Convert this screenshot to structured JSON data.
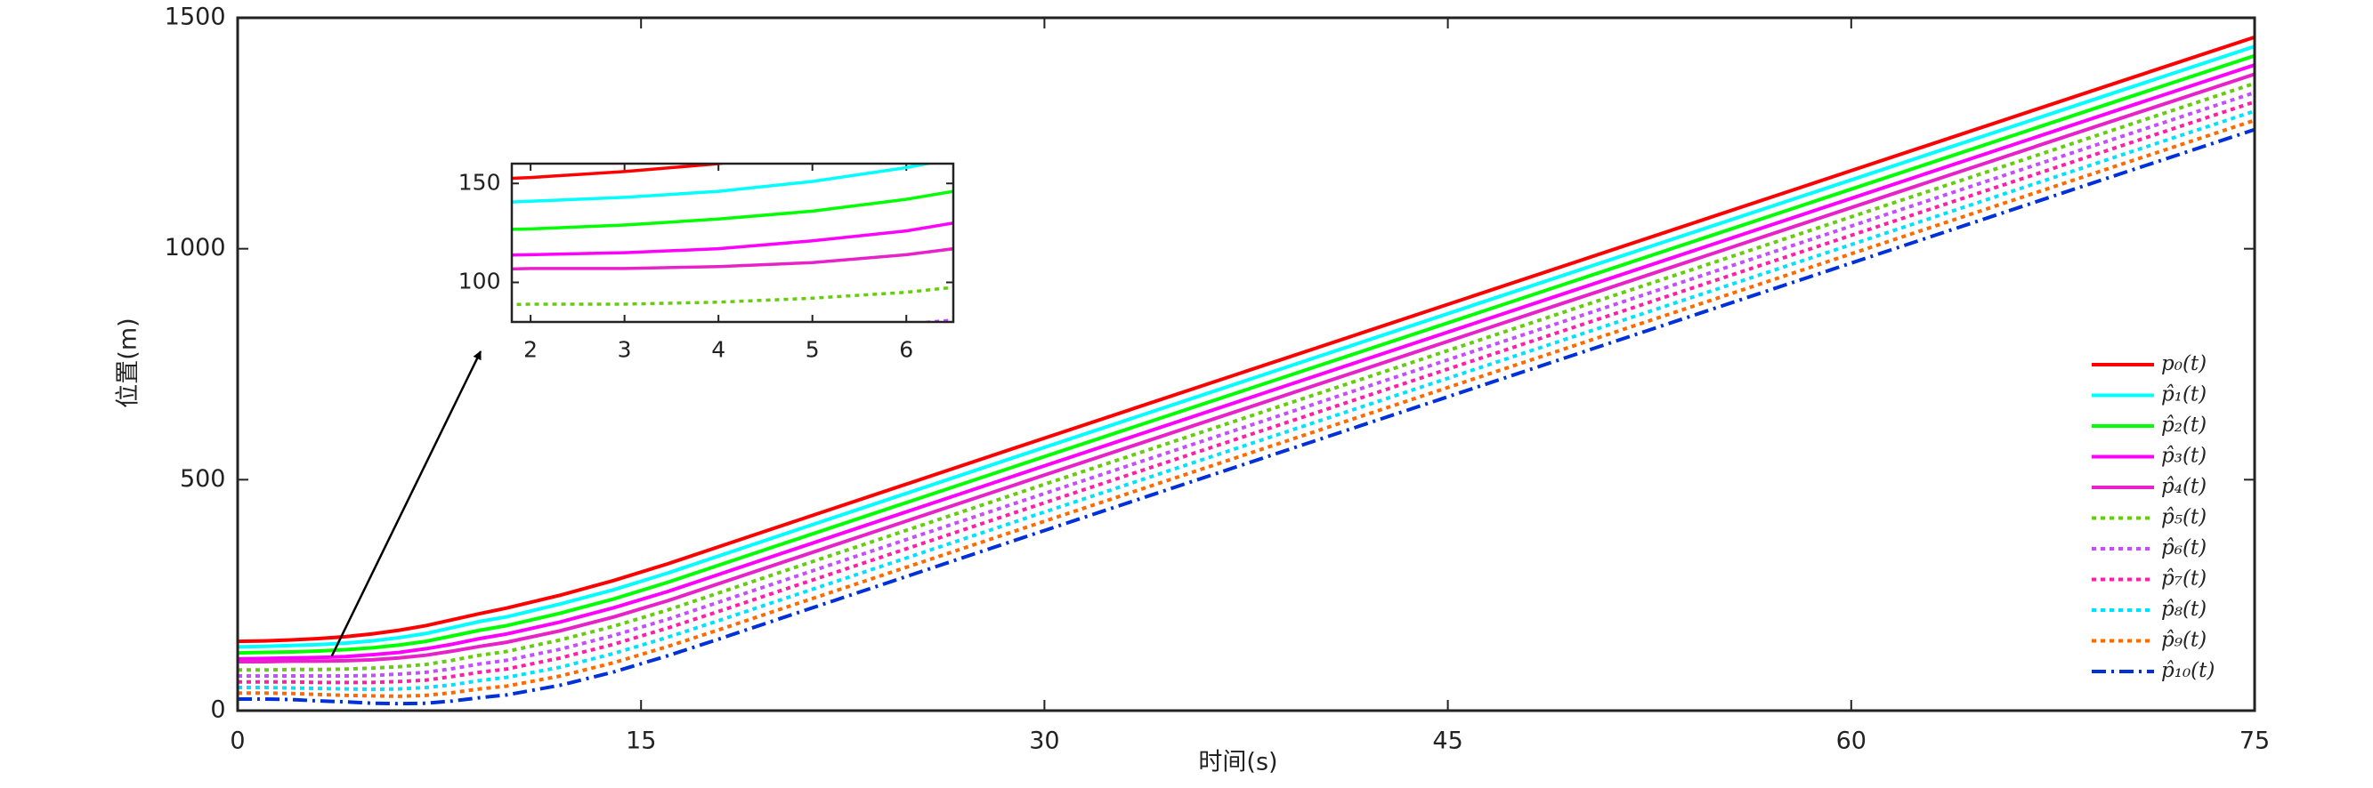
{
  "chart_data": {
    "type": "line",
    "xlabel": "时间(s)",
    "ylabel": "位置(m)",
    "x": [
      0,
      1,
      2,
      3,
      4,
      5,
      6,
      7,
      8,
      9,
      10,
      12,
      14,
      16,
      18,
      20,
      25,
      30,
      40,
      50,
      60,
      70,
      75
    ],
    "xlim": [
      0,
      75
    ],
    "xticks": [
      0,
      15,
      30,
      45,
      60,
      75
    ],
    "ylim": [
      0,
      1500
    ],
    "yticks": [
      0,
      500,
      1000,
      1500
    ],
    "legend": "right",
    "series": [
      {
        "name": "p₀(t)",
        "color": "#ff0000",
        "style": "solid",
        "values": [
          150,
          151,
          153,
          156,
          160,
          166,
          174,
          184,
          197,
          210,
          222,
          250,
          282,
          318,
          357,
          396,
          493,
          590,
          783,
          976,
          1169,
          1362,
          1458
        ]
      },
      {
        "name": "p̂₁(t)",
        "color": "#00ffff",
        "style": "solid",
        "values": [
          138,
          139,
          141,
          143,
          146,
          151,
          158,
          167,
          180,
          193,
          203,
          231,
          262,
          298,
          337,
          376,
          473,
          570,
          763,
          956,
          1149,
          1342,
          1438
        ]
      },
      {
        "name": "p̂₂(t)",
        "color": "#00ff00",
        "style": "solid",
        "values": [
          125,
          126,
          127,
          129,
          132,
          136,
          142,
          150,
          162,
          174,
          184,
          211,
          242,
          278,
          317,
          356,
          453,
          550,
          743,
          936,
          1129,
          1322,
          1418
        ]
      },
      {
        "name": "p̂₃(t)",
        "color": "#ff00ff",
        "style": "solid",
        "values": [
          112,
          113,
          114,
          115,
          117,
          121,
          126,
          134,
          144,
          156,
          166,
          192,
          223,
          258,
          297,
          336,
          433,
          530,
          723,
          916,
          1109,
          1302,
          1398
        ]
      },
      {
        "name": "p̂₄(t)",
        "color": "#e622c8",
        "style": "solid",
        "values": [
          106,
          106,
          107,
          107,
          108,
          110,
          114,
          120,
          129,
          139,
          148,
          173,
          203,
          238,
          277,
          316,
          413,
          510,
          703,
          896,
          1089,
          1282,
          1378
        ]
      },
      {
        "name": "p̂₅(t)",
        "color": "#66cc11",
        "style": "dotted",
        "values": [
          88,
          88,
          89,
          89,
          90,
          92,
          95,
          100,
          109,
          120,
          128,
          153,
          183,
          218,
          257,
          296,
          393,
          490,
          683,
          876,
          1069,
          1262,
          1358
        ]
      },
      {
        "name": "p̂₆(t)",
        "color": "#c44dff",
        "style": "dotted",
        "values": [
          75,
          75,
          75,
          75,
          75,
          76,
          79,
          83,
          91,
          101,
          109,
          133,
          163,
          198,
          237,
          276,
          373,
          470,
          663,
          856,
          1049,
          1242,
          1338
        ]
      },
      {
        "name": "p̂₇(t)",
        "color": "#ff1fa5",
        "style": "dotted",
        "values": [
          62,
          62,
          62,
          61,
          61,
          61,
          63,
          66,
          74,
          83,
          90,
          114,
          144,
          179,
          217,
          256,
          353,
          450,
          643,
          836,
          1029,
          1222,
          1318
        ]
      },
      {
        "name": "p̂₈(t)",
        "color": "#00e0ff",
        "style": "dotted",
        "values": [
          50,
          50,
          49,
          48,
          47,
          46,
          47,
          50,
          56,
          65,
          72,
          94,
          124,
          159,
          197,
          236,
          333,
          430,
          623,
          816,
          1009,
          1202,
          1298
        ]
      },
      {
        "name": "p̂₉(t)",
        "color": "#ff6a00",
        "style": "dotted",
        "values": [
          38,
          38,
          37,
          35,
          33,
          32,
          31,
          33,
          39,
          47,
          53,
          75,
          104,
          139,
          177,
          216,
          313,
          410,
          603,
          796,
          989,
          1182,
          1278
        ]
      },
      {
        "name": "p̂₁₀(t)",
        "color": "#0030d8",
        "style": "dashdot",
        "values": [
          25,
          25,
          24,
          21,
          19,
          16,
          15,
          16,
          21,
          28,
          34,
          55,
          84,
          119,
          157,
          196,
          293,
          390,
          583,
          776,
          969,
          1162,
          1258
        ]
      }
    ],
    "inset": {
      "xlim": [
        1.8,
        6.5
      ],
      "xticks": [
        2,
        3,
        4,
        5,
        6
      ],
      "ylim": [
        80,
        160
      ],
      "yticks": [
        100,
        150
      ]
    }
  }
}
